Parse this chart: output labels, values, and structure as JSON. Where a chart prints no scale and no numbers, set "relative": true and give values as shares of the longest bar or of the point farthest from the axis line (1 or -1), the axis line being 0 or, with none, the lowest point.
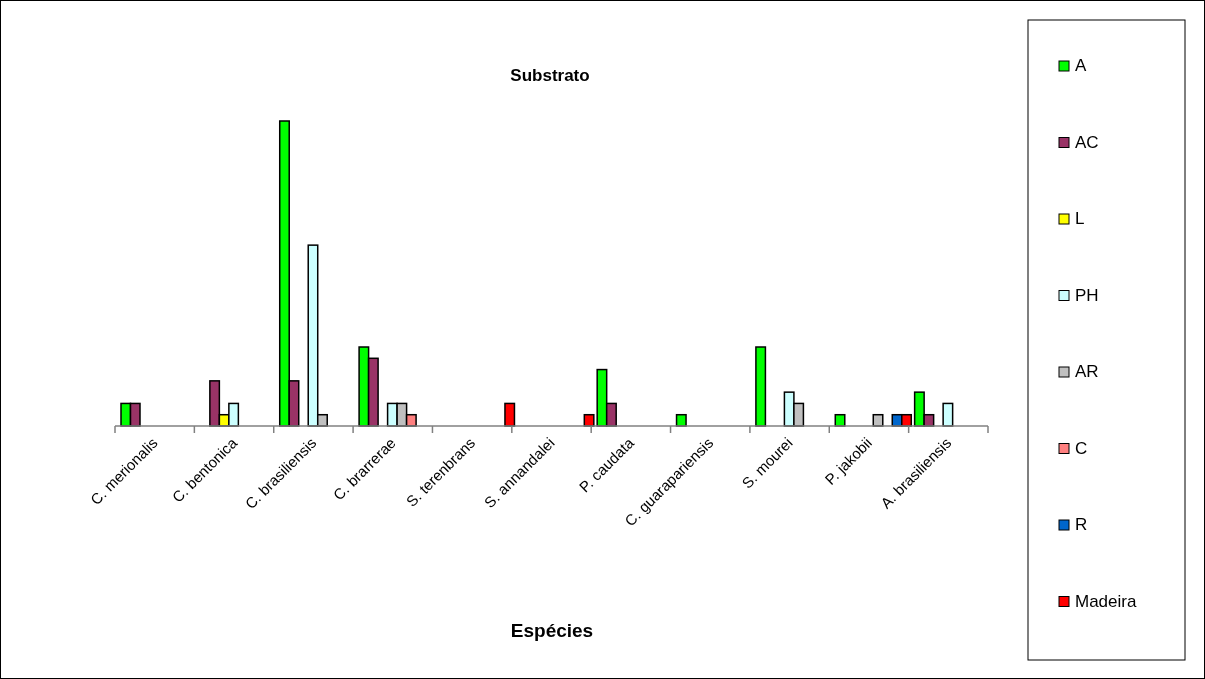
{
  "chart_data": {
    "type": "bar",
    "title": "Substrato",
    "xlabel": "Espécies",
    "relative": true,
    "legend": "right",
    "grid": false,
    "categories": [
      "C. merionalis",
      "C. bentonica",
      "C. brasiliensis",
      "C. brarrerae",
      "S. terenbrans",
      "S. annandalei",
      "P. caudata",
      "C. guarapariensis",
      "S. mourei",
      "P. jakobii",
      "A. brasiliensis"
    ],
    "series": [
      {
        "name": "A",
        "color": "#00ff00",
        "values": [
          0.074,
          null,
          1,
          0.259,
          null,
          null,
          0.185,
          0.037,
          0.259,
          0.037,
          0.111
        ]
      },
      {
        "name": "AC",
        "color": "#993366",
        "values": [
          0.074,
          0.148,
          0.148,
          0.222,
          null,
          null,
          0.074,
          null,
          null,
          null,
          0.037
        ]
      },
      {
        "name": "L",
        "color": "#ffff00",
        "values": [
          null,
          0.037,
          null,
          null,
          null,
          null,
          null,
          null,
          null,
          null,
          null
        ]
      },
      {
        "name": "PH",
        "color": "#ccffff",
        "values": [
          null,
          0.074,
          0.593,
          0.074,
          null,
          null,
          null,
          null,
          0.111,
          null,
          0.074
        ]
      },
      {
        "name": "AR",
        "color": "#c0c0c0",
        "values": [
          null,
          null,
          0.037,
          0.074,
          null,
          null,
          null,
          null,
          0.074,
          0.037,
          null
        ]
      },
      {
        "name": "C",
        "color": "#ff8080",
        "values": [
          null,
          null,
          null,
          0.037,
          null,
          null,
          null,
          null,
          null,
          null,
          null
        ]
      },
      {
        "name": "R",
        "color": "#0066cc",
        "values": [
          null,
          null,
          null,
          null,
          null,
          null,
          null,
          null,
          null,
          0.037,
          null
        ]
      },
      {
        "name": "Madeira",
        "color": "#ff0000",
        "values": [
          null,
          null,
          null,
          null,
          0.074,
          0.037,
          null,
          null,
          null,
          0.037,
          null
        ]
      }
    ]
  }
}
